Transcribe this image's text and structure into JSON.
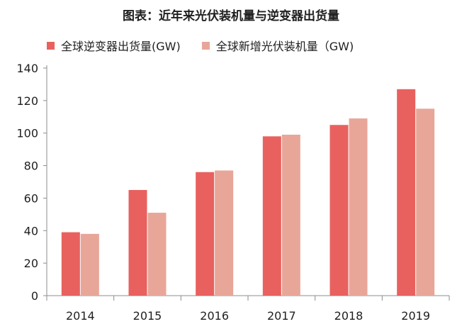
{
  "chart_data": {
    "type": "bar",
    "title": "图表：近年来光伏装机量与逆变器出货量",
    "categories": [
      "2014",
      "2015",
      "2016",
      "2017",
      "2018",
      "2019"
    ],
    "series": [
      {
        "name": "全球逆变器出货量(GW)",
        "color": "#e8615e",
        "values": [
          39,
          65,
          76,
          98,
          105,
          127
        ]
      },
      {
        "name": "全球新增光伏装机量（GW)",
        "color": "#e8a699",
        "values": [
          38,
          51,
          77,
          99,
          109,
          115
        ]
      }
    ],
    "xlabel": "",
    "ylabel": "",
    "ylim": [
      0,
      140
    ],
    "yticks": [
      0,
      20,
      40,
      60,
      80,
      100,
      120,
      140
    ],
    "grid": false,
    "legend_position": "top-left"
  }
}
